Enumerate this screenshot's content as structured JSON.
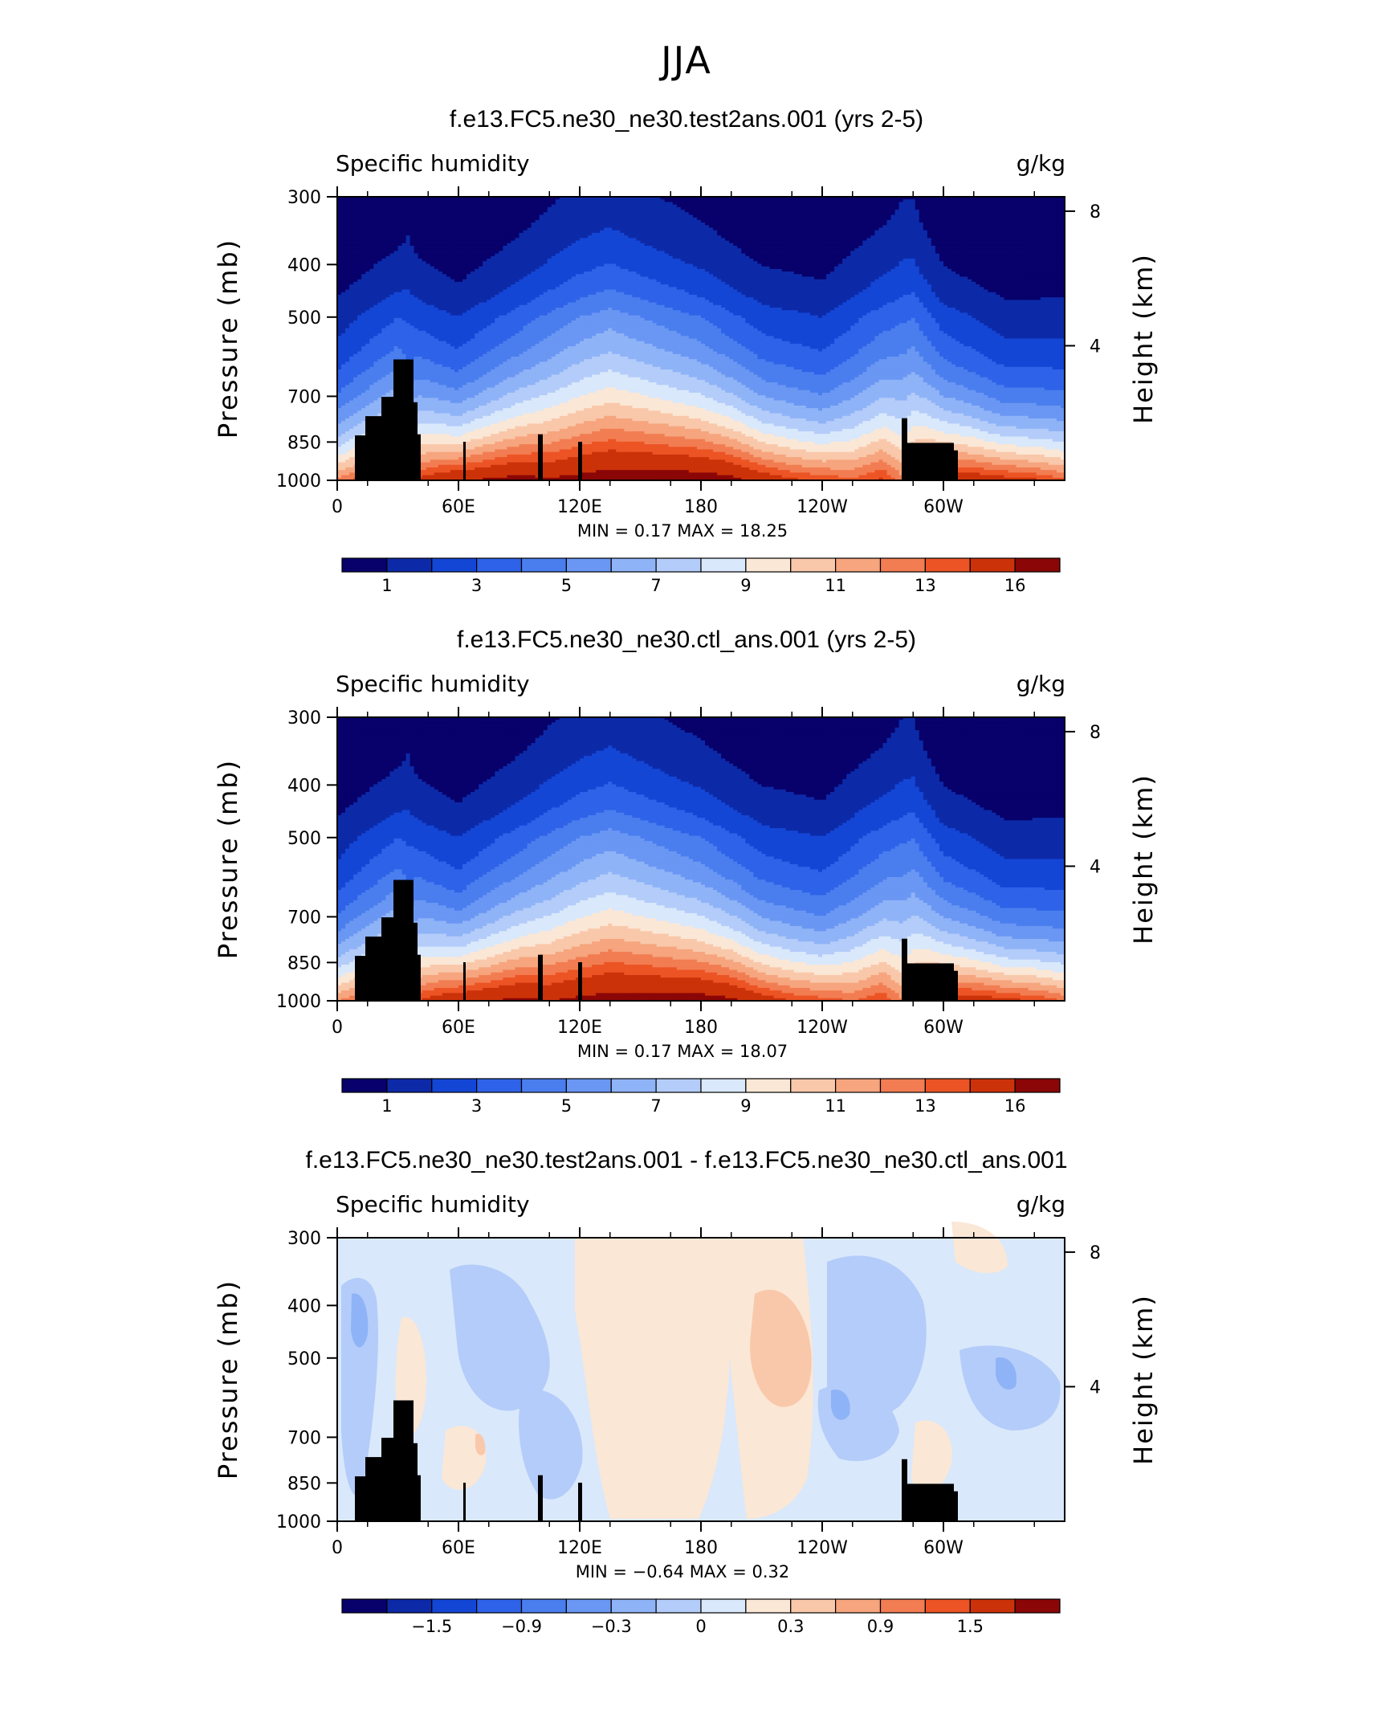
{
  "page_title": "JJA",
  "panels": [
    {
      "title": "f.e13.FC5.ne30_ne30.test2ans.001 (yrs 2-5)",
      "left_label": "Specific humidity",
      "right_label": "g/kg",
      "ylabel": "Pressure (mb)",
      "ylabel_right": "Height (km)",
      "stats": "MIN =    0.17   MAX =    18.25",
      "colorbar_ticks": [
        "1",
        "3",
        "5",
        "7",
        "9",
        "11",
        "13",
        "16"
      ]
    },
    {
      "title": "f.e13.FC5.ne30_ne30.ctl_ans.001 (yrs 2-5)",
      "left_label": "Specific humidity",
      "right_label": "g/kg",
      "ylabel": "Pressure (mb)",
      "ylabel_right": "Height (km)",
      "stats": "MIN =    0.17   MAX =    18.07",
      "colorbar_ticks": [
        "1",
        "3",
        "5",
        "7",
        "9",
        "11",
        "13",
        "16"
      ]
    },
    {
      "title": "f.e13.FC5.ne30_ne30.test2ans.001 - f.e13.FC5.ne30_ne30.ctl_ans.001",
      "left_label": "Specific humidity",
      "right_label": "g/kg",
      "ylabel": "Pressure (mb)",
      "ylabel_right": "Height (km)",
      "stats": "MIN =   −0.64   MAX =     0.32",
      "colorbar_ticks": [
        "−1.5",
        "−0.9",
        "−0.3",
        "0",
        "0.3",
        "0.9",
        "1.5"
      ]
    }
  ],
  "chart_data": [
    {
      "type": "heatmap",
      "title": "f.e13.FC5.ne30_ne30.test2ans.001 (yrs 2-5)",
      "field": "Specific humidity",
      "units": "g/kg",
      "xlabel": "",
      "ylabel": "Pressure (mb)",
      "ylabel_right": "Height (km)",
      "x_ticks": [
        "0",
        "60E",
        "120E",
        "180",
        "120W",
        "60W"
      ],
      "x_tick_values": [
        0,
        60,
        120,
        180,
        240,
        300
      ],
      "xlim": [
        0,
        360
      ],
      "y_ticks": [
        "300",
        "400",
        "500",
        "700",
        "850",
        "1000"
      ],
      "y_tick_values": [
        300,
        400,
        500,
        700,
        850,
        1000
      ],
      "ylim": [
        1000,
        300
      ],
      "y_scale": "log",
      "right_ticks": [
        "8",
        "4"
      ],
      "right_tick_values": [
        8,
        4
      ],
      "min": 0.17,
      "max": 18.25,
      "contour_levels": [
        1,
        2,
        3,
        4,
        5,
        6,
        7,
        8,
        9,
        10,
        11,
        12,
        13,
        14,
        16
      ],
      "colors": [
        "#08006b",
        "#0c2aa8",
        "#1446d6",
        "#2e62e8",
        "#4a7eee",
        "#6a97f3",
        "#8fb3f7",
        "#b4ccf9",
        "#d9e8fb",
        "#fbe7d6",
        "#f9c8aa",
        "#f6a57e",
        "#f27d52",
        "#ec5425",
        "#cc3209",
        "#8b0606"
      ],
      "colorbar_labels": [
        "1",
        "3",
        "5",
        "7",
        "9",
        "11",
        "13",
        "16"
      ],
      "colorbar_label_levels": [
        1,
        3,
        5,
        7,
        9,
        11,
        13,
        16
      ],
      "approx_surface_level_by_longitude": {
        "lon": [
          0,
          10,
          20,
          30,
          35,
          40,
          50,
          60,
          75,
          90,
          105,
          120,
          135,
          150,
          165,
          180,
          195,
          210,
          225,
          240,
          255,
          270,
          280,
          290,
          300,
          315,
          330,
          345,
          360
        ],
        "value_at_1000mb": [
          12,
          13,
          14,
          15,
          10,
          14,
          15,
          15.5,
          16,
          16.5,
          16,
          16.5,
          17,
          17,
          17,
          17,
          16.5,
          15,
          14,
          13.5,
          13,
          14,
          12,
          14,
          15,
          15,
          14.5,
          14,
          13
        ]
      },
      "approx_500mb_value_by_longitude": {
        "lon": [
          0,
          30,
          60,
          90,
          120,
          135,
          150,
          180,
          210,
          240,
          270,
          285,
          300,
          330,
          360
        ],
        "value": [
          1.5,
          3,
          2,
          3.5,
          5,
          5.5,
          5,
          4,
          2.5,
          2,
          3.5,
          4,
          2.5,
          1.5,
          1.5
        ]
      }
    },
    {
      "type": "heatmap",
      "title": "f.e13.FC5.ne30_ne30.ctl_ans.001 (yrs 2-5)",
      "field": "Specific humidity",
      "units": "g/kg",
      "xlabel": "",
      "ylabel": "Pressure (mb)",
      "ylabel_right": "Height (km)",
      "x_ticks": [
        "0",
        "60E",
        "120E",
        "180",
        "120W",
        "60W"
      ],
      "x_tick_values": [
        0,
        60,
        120,
        180,
        240,
        300
      ],
      "xlim": [
        0,
        360
      ],
      "y_ticks": [
        "300",
        "400",
        "500",
        "700",
        "850",
        "1000"
      ],
      "y_tick_values": [
        300,
        400,
        500,
        700,
        850,
        1000
      ],
      "ylim": [
        1000,
        300
      ],
      "y_scale": "log",
      "right_ticks": [
        "8",
        "4"
      ],
      "right_tick_values": [
        8,
        4
      ],
      "min": 0.17,
      "max": 18.07,
      "contour_levels": [
        1,
        2,
        3,
        4,
        5,
        6,
        7,
        8,
        9,
        10,
        11,
        12,
        13,
        14,
        16
      ],
      "colors": [
        "#08006b",
        "#0c2aa8",
        "#1446d6",
        "#2e62e8",
        "#4a7eee",
        "#6a97f3",
        "#8fb3f7",
        "#b4ccf9",
        "#d9e8fb",
        "#fbe7d6",
        "#f9c8aa",
        "#f6a57e",
        "#f27d52",
        "#ec5425",
        "#cc3209",
        "#8b0606"
      ],
      "colorbar_labels": [
        "1",
        "3",
        "5",
        "7",
        "9",
        "11",
        "13",
        "16"
      ],
      "colorbar_label_levels": [
        1,
        3,
        5,
        7,
        9,
        11,
        13,
        16
      ],
      "approx_surface_level_by_longitude": {
        "lon": [
          0,
          10,
          20,
          30,
          35,
          40,
          50,
          60,
          75,
          90,
          105,
          120,
          135,
          150,
          165,
          180,
          195,
          210,
          225,
          240,
          255,
          270,
          280,
          290,
          300,
          315,
          330,
          345,
          360
        ],
        "value_at_1000mb": [
          12,
          13,
          14,
          15,
          10,
          14,
          15,
          15.5,
          16,
          16.5,
          16,
          16.5,
          17,
          17,
          17,
          17,
          16.5,
          15,
          14,
          13.5,
          13,
          14,
          12,
          14,
          15,
          15,
          14.5,
          14,
          13
        ]
      },
      "approx_500mb_value_by_longitude": {
        "lon": [
          0,
          30,
          60,
          90,
          120,
          135,
          150,
          180,
          210,
          240,
          270,
          285,
          300,
          330,
          360
        ],
        "value": [
          1.5,
          3,
          2,
          3.5,
          5,
          5.5,
          5,
          4,
          2.5,
          2,
          3.5,
          4,
          2.5,
          1.5,
          1.5
        ]
      }
    },
    {
      "type": "heatmap",
      "title": "f.e13.FC5.ne30_ne30.test2ans.001 - f.e13.FC5.ne30_ne30.ctl_ans.001",
      "field": "Specific humidity",
      "units": "g/kg",
      "xlabel": "",
      "ylabel": "Pressure (mb)",
      "ylabel_right": "Height (km)",
      "x_ticks": [
        "0",
        "60E",
        "120E",
        "180",
        "120W",
        "60W"
      ],
      "x_tick_values": [
        0,
        60,
        120,
        180,
        240,
        300
      ],
      "xlim": [
        0,
        360
      ],
      "y_ticks": [
        "300",
        "400",
        "500",
        "700",
        "850",
        "1000"
      ],
      "y_tick_values": [
        300,
        400,
        500,
        700,
        850,
        1000
      ],
      "ylim": [
        1000,
        300
      ],
      "y_scale": "log",
      "right_ticks": [
        "8",
        "4"
      ],
      "right_tick_values": [
        8,
        4
      ],
      "min": -0.64,
      "max": 0.32,
      "contour_levels": [
        -1.8,
        -1.5,
        -1.2,
        -0.9,
        -0.6,
        -0.3,
        -0.1,
        0,
        0.1,
        0.3,
        0.6,
        0.9,
        1.2,
        1.5,
        1.8
      ],
      "colors": [
        "#08006b",
        "#0c2aa8",
        "#1446d6",
        "#2e62e8",
        "#4a7eee",
        "#6a97f3",
        "#8fb3f7",
        "#b4ccf9",
        "#d9e8fb",
        "#fbe7d6",
        "#f9c8aa",
        "#f6a57e",
        "#f27d52",
        "#ec5425",
        "#cc3209",
        "#8b0606"
      ],
      "colorbar_labels": [
        "−1.5",
        "−0.9",
        "−0.3",
        "0",
        "0.3",
        "0.9",
        "1.5"
      ],
      "colorbar_label_levels": [
        -1.5,
        -0.9,
        -0.3,
        0,
        0.3,
        0.9,
        1.5
      ],
      "approx_anomaly_regions": [
        {
          "lon_range": [
            10,
            30
          ],
          "p_range": [
            400,
            600
          ],
          "value": -0.3
        },
        {
          "lon_range": [
            100,
            130
          ],
          "p_range": [
            500,
            750
          ],
          "value": -0.1
        },
        {
          "lon_range": [
            200,
            230
          ],
          "p_range": [
            500,
            750
          ],
          "value": 0.1
        },
        {
          "lon_range": [
            250,
            290
          ],
          "p_range": [
            700,
            900
          ],
          "value": -0.3
        },
        {
          "lon_range": [
            330,
            350
          ],
          "p_range": [
            750,
            850
          ],
          "value": -0.3
        }
      ]
    }
  ]
}
